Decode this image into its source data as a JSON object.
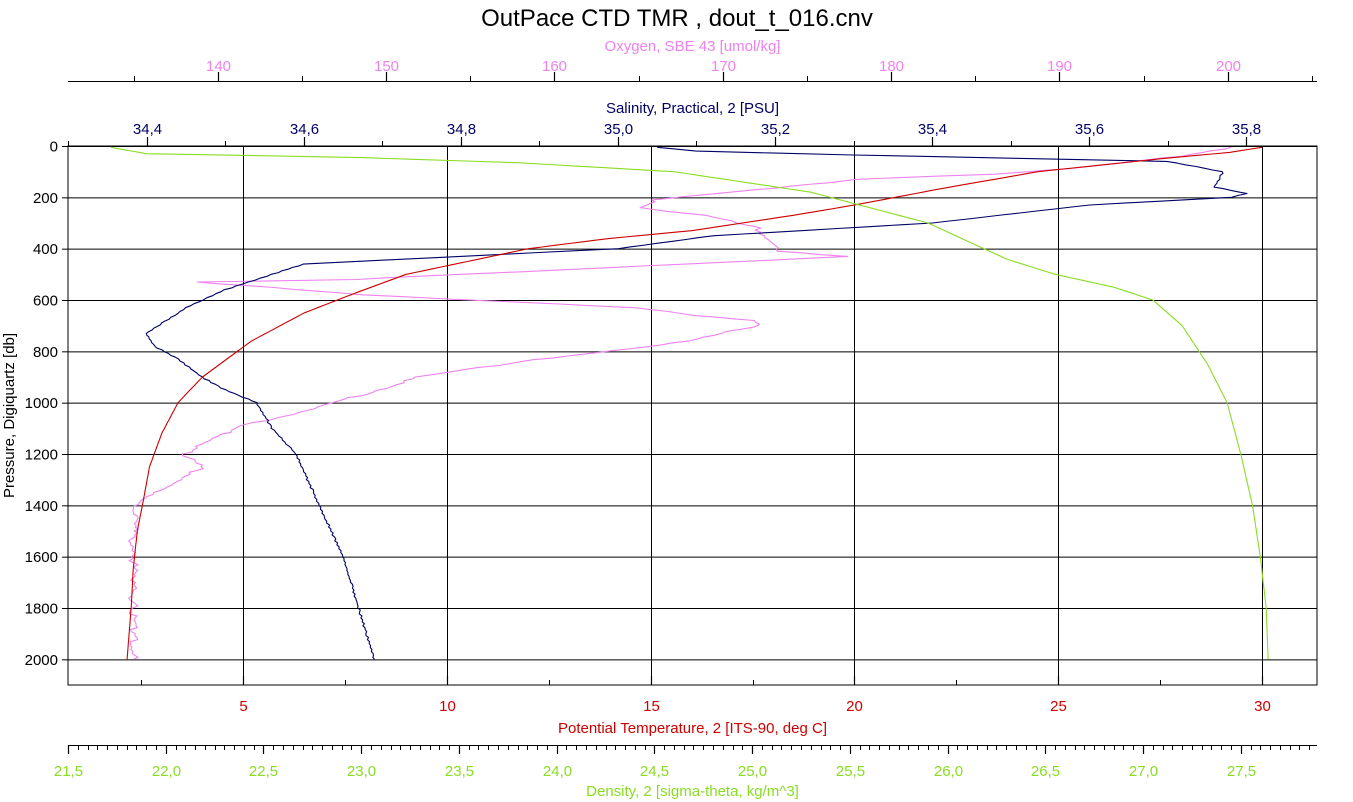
{
  "chart_data": {
    "type": "line",
    "title": "OutPace CTD TMR , dout_t_016.cnv",
    "ylabel": "Pressure, Digiquartz [db]",
    "y_reversed": true,
    "ylim": [
      0,
      2100
    ],
    "y_ticks": [
      0,
      200,
      400,
      600,
      800,
      1000,
      1200,
      1400,
      1600,
      1800,
      2000
    ],
    "y_tick_labels": [
      "0",
      "200",
      "400",
      "600",
      "800",
      "1000",
      "1200",
      "1400",
      "1600",
      "1800",
      "2000"
    ],
    "grid": true,
    "axes": {
      "oxygen": {
        "label": "Oxygen, SBE 43 [umol/kg]",
        "color": "#ee82ee",
        "position": "top-outer",
        "range": [
          131.1,
          205.3
        ],
        "ticks": [
          140,
          150,
          160,
          170,
          180,
          190,
          200
        ],
        "tick_labels": [
          "140",
          "150",
          "160",
          "170",
          "180",
          "190",
          "200"
        ],
        "minor_step": 5
      },
      "salinity": {
        "label": "Salinity, Practical, 2 [PSU]",
        "color": "#000066",
        "position": "top-inner",
        "range": [
          34.3,
          35.89
        ],
        "ticks": [
          34.4,
          34.6,
          34.8,
          35.0,
          35.2,
          35.4,
          35.6,
          35.8
        ],
        "tick_labels": [
          "34,4",
          "34,6",
          "34,8",
          "35,0",
          "35,2",
          "35,4",
          "35,6",
          "35,8"
        ],
        "minor_step": 0.1
      },
      "temperature": {
        "label": "Potential Temperature, 2 [ITS-90, deg C]",
        "color": "#cc0000",
        "position": "bottom-inner",
        "range": [
          0.7,
          31.35
        ],
        "ticks": [
          5,
          10,
          15,
          20,
          25,
          30
        ],
        "tick_labels": [
          "5",
          "10",
          "15",
          "20",
          "25",
          "30"
        ],
        "minor_step": 2.5
      },
      "density": {
        "label": "Density, 2 [sigma-theta, kg/m^3]",
        "color": "#88dd22",
        "position": "bottom-outer",
        "range": [
          21.5,
          27.89
        ],
        "ticks": [
          21.5,
          22.0,
          22.5,
          23.0,
          23.5,
          24.0,
          24.5,
          25.0,
          25.5,
          26.0,
          26.5,
          27.0,
          27.5
        ],
        "tick_labels": [
          "21,5",
          "22,0",
          "22,5",
          "23,0",
          "23,5",
          "24,0",
          "24,5",
          "25,0",
          "25,5",
          "26,0",
          "26,5",
          "27,0",
          "27,5"
        ],
        "minor_step": 0.05
      }
    },
    "series": [
      {
        "name": "Oxygen, SBE 43 [umol/kg]",
        "axis": "oxygen",
        "x": [
          200.2,
          197.0,
          192.0,
          186.0,
          178.0,
          172.0,
          166.0,
          165.0,
          169.0,
          172.0,
          173.0,
          173.0,
          177.5,
          148.0,
          139.0,
          148.5,
          165.0,
          168.0,
          172.0,
          172.0,
          168.0,
          158.0,
          152.0,
          149.0,
          147.0,
          141.0,
          138.0,
          139.0,
          138.0,
          136.0,
          135.0,
          135.0,
          135.0,
          135.0,
          135.0,
          135.0,
          135.0
        ],
        "y": [
          5,
          40,
          80,
          110,
          130,
          170,
          210,
          240,
          270,
          320,
          380,
          410,
          430,
          520,
          530,
          580,
          630,
          660,
          680,
          700,
          760,
          840,
          900,
          960,
          1000,
          1100,
          1200,
          1250,
          1300,
          1350,
          1420,
          1500,
          1600,
          1700,
          1800,
          1900,
          2000
        ]
      },
      {
        "name": "Salinity, Practical, 2 [PSU]",
        "axis": "salinity",
        "x": [
          35.05,
          35.1,
          35.3,
          35.7,
          35.77,
          35.76,
          35.8,
          35.78,
          35.6,
          35.4,
          35.12,
          35.0,
          34.6,
          34.56,
          34.5,
          34.45,
          34.42,
          34.4,
          34.41,
          34.44,
          34.47,
          34.5,
          34.54,
          34.56,
          34.59,
          34.62,
          34.65,
          34.67,
          34.68,
          34.69
        ],
        "y": [
          5,
          20,
          35,
          60,
          100,
          160,
          185,
          200,
          230,
          300,
          350,
          400,
          460,
          500,
          560,
          630,
          690,
          730,
          780,
          830,
          900,
          950,
          1000,
          1100,
          1200,
          1400,
          1600,
          1800,
          1900,
          2000
        ]
      },
      {
        "name": "Potential Temperature, 2 [ITS-90, deg C]",
        "axis": "temperature",
        "x": [
          30.0,
          29.2,
          27.5,
          24.5,
          22.0,
          20.0,
          18.5,
          16.0,
          14.0,
          12.0,
          10.5,
          9.0,
          7.8,
          6.5,
          5.2,
          4.0,
          3.4,
          3.0,
          2.7,
          2.55,
          2.4,
          2.3,
          2.25,
          2.2,
          2.15
        ],
        "y": [
          5,
          25,
          50,
          100,
          170,
          230,
          270,
          330,
          360,
          400,
          450,
          500,
          570,
          650,
          760,
          900,
          1000,
          1120,
          1250,
          1380,
          1500,
          1650,
          1800,
          1900,
          2000
        ]
      },
      {
        "name": "Density, 2 [sigma-theta, kg/m^3]",
        "axis": "density",
        "x": [
          21.72,
          21.9,
          23.0,
          23.8,
          24.6,
          25.3,
          25.9,
          26.3,
          26.55,
          26.85,
          27.05,
          27.2,
          27.33,
          27.43,
          27.5,
          27.56,
          27.6,
          27.63,
          27.64
        ],
        "y": [
          5,
          30,
          45,
          65,
          100,
          180,
          300,
          440,
          500,
          550,
          600,
          700,
          850,
          1000,
          1200,
          1400,
          1600,
          1800,
          2000
        ]
      }
    ]
  }
}
